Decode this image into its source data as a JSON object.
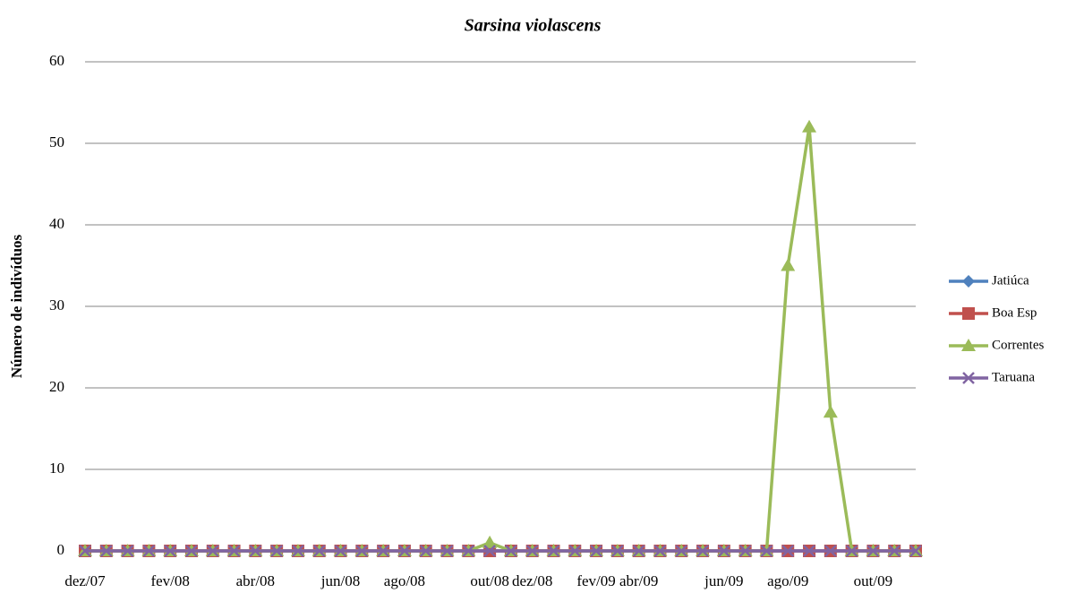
{
  "chart_data": {
    "type": "line",
    "title": "Sarsina violascens",
    "y_label": "Número de indivíduos",
    "categories": [
      "dez/07",
      null,
      null,
      null,
      "fev/08",
      null,
      null,
      null,
      "abr/08",
      null,
      null,
      null,
      "jun/08",
      null,
      null,
      "ago/08",
      null,
      null,
      null,
      "out/08",
      null,
      "dez/08",
      null,
      null,
      "fev/09",
      null,
      "abr/09",
      null,
      null,
      null,
      "jun/09",
      null,
      null,
      "ago/09",
      null,
      null,
      null,
      "out/09",
      null,
      null
    ],
    "series": [
      {
        "name": "Jatiúca",
        "color": "#4f81bd",
        "marker": "diamond",
        "values": [
          0,
          0,
          0,
          0,
          0,
          0,
          0,
          0,
          0,
          0,
          0,
          0,
          0,
          0,
          0,
          0,
          0,
          0,
          0,
          0,
          0,
          0,
          0,
          0,
          0,
          0,
          0,
          0,
          0,
          0,
          0,
          0,
          0,
          0,
          0,
          0,
          0,
          0,
          0,
          0
        ]
      },
      {
        "name": "Boa Esp",
        "color": "#c0504d",
        "marker": "square",
        "values": [
          0,
          0,
          0,
          0,
          0,
          0,
          0,
          0,
          0,
          0,
          0,
          0,
          0,
          0,
          0,
          0,
          0,
          0,
          0,
          0,
          0,
          0,
          0,
          0,
          0,
          0,
          0,
          0,
          0,
          0,
          0,
          0,
          0,
          0,
          0,
          0,
          0,
          0,
          0,
          0
        ]
      },
      {
        "name": "Correntes",
        "color": "#9bbb59",
        "marker": "triangle",
        "values": [
          0,
          0,
          0,
          0,
          0,
          0,
          0,
          0,
          0,
          0,
          0,
          0,
          0,
          0,
          0,
          0,
          0,
          0,
          0,
          1,
          0,
          0,
          0,
          0,
          0,
          0,
          0,
          0,
          0,
          0,
          0,
          0,
          0,
          35,
          52,
          17,
          0,
          0,
          0,
          0
        ]
      },
      {
        "name": "Taruana",
        "color": "#8064a2",
        "marker": "x",
        "values": [
          0,
          0,
          0,
          0,
          0,
          0,
          0,
          0,
          0,
          0,
          0,
          0,
          0,
          0,
          0,
          0,
          0,
          0,
          0,
          0,
          0,
          0,
          0,
          0,
          0,
          0,
          0,
          0,
          0,
          0,
          0,
          0,
          0,
          0,
          0,
          0,
          0,
          0,
          0,
          0
        ]
      }
    ],
    "ylim": [
      0,
      60
    ],
    "yticks": [
      0,
      10,
      20,
      30,
      40,
      50,
      60
    ],
    "grid": true,
    "legend": "right"
  }
}
